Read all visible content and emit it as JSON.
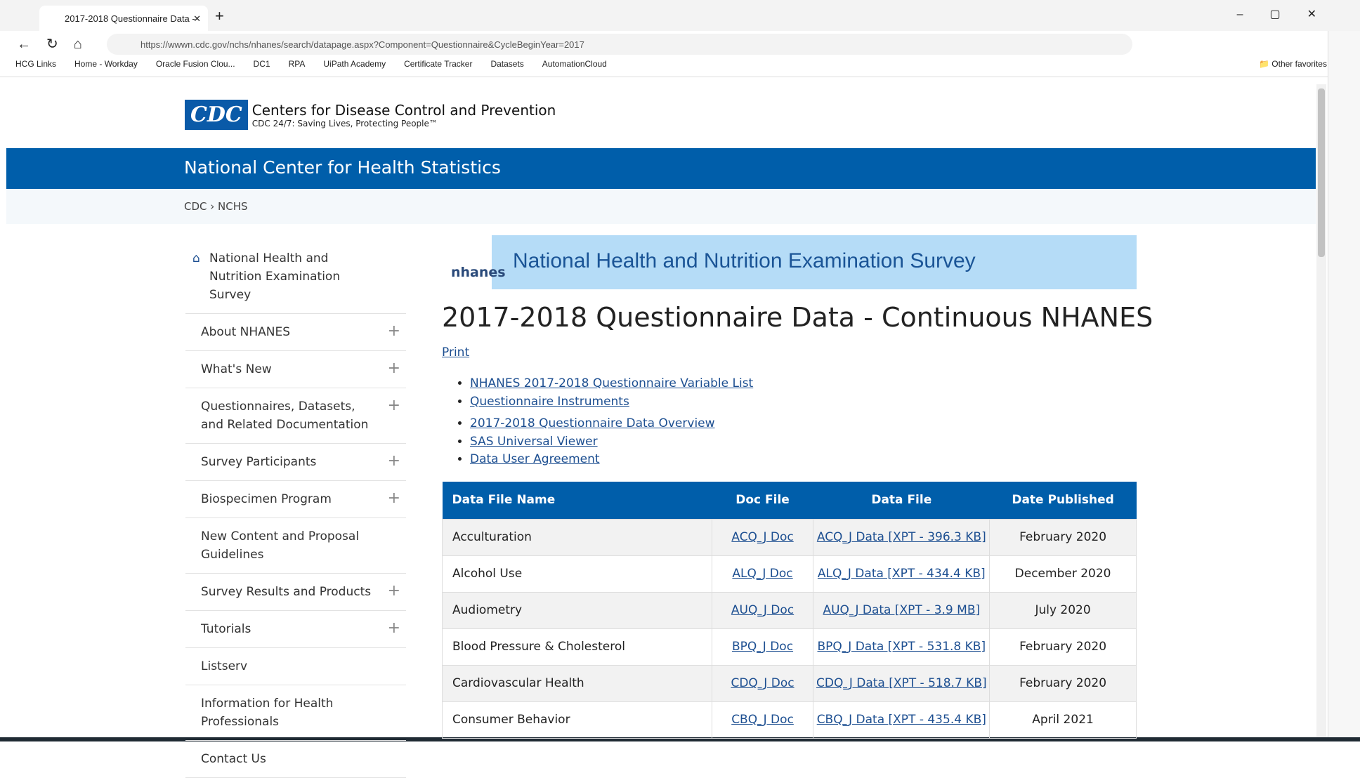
{
  "browser": {
    "tab_title": "2017-2018 Questionnaire Data -",
    "url": "https://wwwn.cdc.gov/nchs/nhanes/search/datapage.aspx?Component=Questionnaire&CycleBeginYear=2017",
    "bookmarks": [
      "HCG Links",
      "Home - Workday",
      "Oracle Fusion Clou...",
      "DC1",
      "RPA",
      "UiPath Academy",
      "Certificate Tracker",
      "Datasets",
      "AutomationCloud"
    ],
    "other_favorites": "Other favorites"
  },
  "header": {
    "logo": "CDC",
    "agency": "Centers for Disease Control and Prevention",
    "tagline": "CDC 24/7: Saving Lives, Protecting People™",
    "center": "National Center for Health Statistics"
  },
  "breadcrumb": [
    "CDC",
    "NCHS"
  ],
  "nav": [
    {
      "label": "National Health and Nutrition Examination Survey",
      "expandable": false
    },
    {
      "label": "About NHANES",
      "expandable": true
    },
    {
      "label": "What's New",
      "expandable": true
    },
    {
      "label": "Questionnaires, Datasets, and Related Documentation",
      "expandable": true
    },
    {
      "label": "Survey Participants",
      "expandable": true
    },
    {
      "label": "Biospecimen Program",
      "expandable": true
    },
    {
      "label": "New Content and Proposal Guidelines",
      "expandable": false
    },
    {
      "label": "Survey Results and Products",
      "expandable": true
    },
    {
      "label": "Tutorials",
      "expandable": true
    },
    {
      "label": "Listserv",
      "expandable": false
    },
    {
      "label": "Information for Health Professionals",
      "expandable": false
    },
    {
      "label": "Contact Us",
      "expandable": false
    }
  ],
  "banner": {
    "logo": "nhanes",
    "title": "National Health and Nutrition Examination Survey"
  },
  "page": {
    "heading": "2017-2018 Questionnaire Data - Continuous NHANES",
    "print": "Print",
    "links": [
      [
        "NHANES 2017-2018 Questionnaire Variable List",
        "Questionnaire Instruments"
      ],
      [
        "2017-2018 Questionnaire Data Overview",
        "SAS Universal Viewer",
        "Data User Agreement"
      ]
    ]
  },
  "table": {
    "columns": [
      "Data File Name",
      "Doc File",
      "Data File",
      "Date Published"
    ],
    "rows": [
      [
        "Acculturation",
        "ACQ_J Doc",
        "ACQ_J Data [XPT - 396.3 KB]",
        "February 2020"
      ],
      [
        "Alcohol Use",
        "ALQ_J Doc",
        "ALQ_J Data [XPT - 434.4 KB]",
        "December 2020"
      ],
      [
        "Audiometry",
        "AUQ_J Doc",
        "AUQ_J Data [XPT - 3.9 MB]",
        "July 2020"
      ],
      [
        "Blood Pressure & Cholesterol",
        "BPQ_J Doc",
        "BPQ_J Data [XPT - 531.8 KB]",
        "February 2020"
      ],
      [
        "Cardiovascular Health",
        "CDQ_J Doc",
        "CDQ_J Data [XPT - 518.7 KB]",
        "February 2020"
      ],
      [
        "Consumer Behavior",
        "CBQ_J Doc",
        "CBQ_J Data [XPT - 435.4 KB]",
        "April 2021"
      ]
    ]
  }
}
